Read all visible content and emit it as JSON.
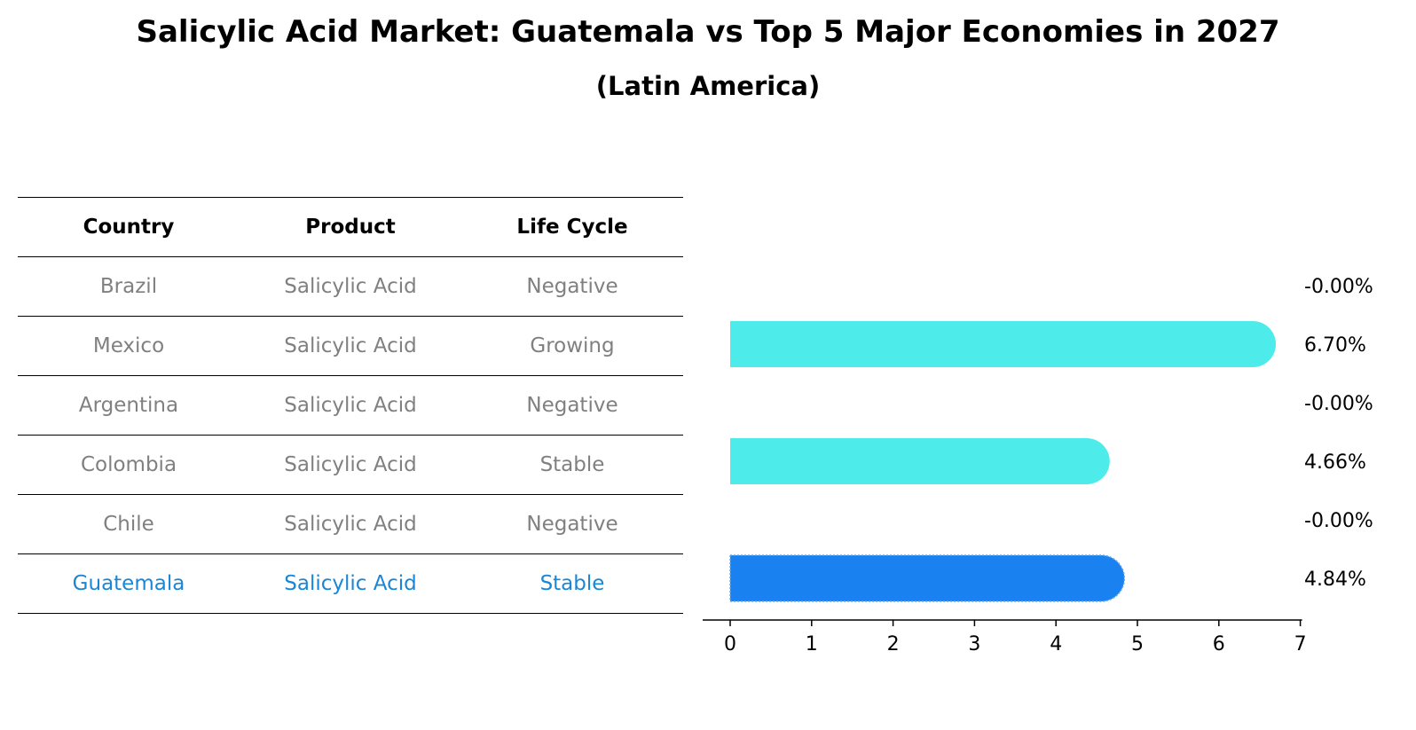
{
  "title": "Salicylic Acid Market: Guatemala vs Top 5 Major Economies in 2027",
  "subtitle": "(Latin America)",
  "table": {
    "headers": [
      "Country",
      "Product",
      "Life Cycle"
    ],
    "rows": [
      {
        "country": "Brazil",
        "product": "Salicylic Acid",
        "life_cycle": "Negative"
      },
      {
        "country": "Mexico",
        "product": "Salicylic Acid",
        "life_cycle": "Growing"
      },
      {
        "country": "Argentina",
        "product": "Salicylic Acid",
        "life_cycle": "Negative"
      },
      {
        "country": "Colombia",
        "product": "Salicylic Acid",
        "life_cycle": "Stable"
      },
      {
        "country": "Chile",
        "product": "Salicylic Acid",
        "life_cycle": "Negative"
      },
      {
        "country": "Guatemala",
        "product": "Salicylic Acid",
        "life_cycle": "Stable"
      }
    ]
  },
  "chart_data": {
    "type": "bar",
    "orientation": "horizontal",
    "categories": [
      "Brazil",
      "Mexico",
      "Argentina",
      "Colombia",
      "Chile",
      "Guatemala"
    ],
    "values": [
      -0.0,
      6.7,
      -0.0,
      4.66,
      -0.0,
      4.84
    ],
    "data_labels": [
      "-0.00%",
      "6.70%",
      "-0.00%",
      "4.66%",
      "-0.00%",
      "4.84%"
    ],
    "xlim": [
      0,
      7
    ],
    "xticks": [
      0,
      1,
      2,
      3,
      4,
      5,
      6,
      7
    ],
    "highlight": "Guatemala",
    "colors": {
      "default": "#4deceb",
      "highlight": "#1a82f0"
    },
    "grid": false,
    "xlabel": "",
    "ylabel": ""
  }
}
